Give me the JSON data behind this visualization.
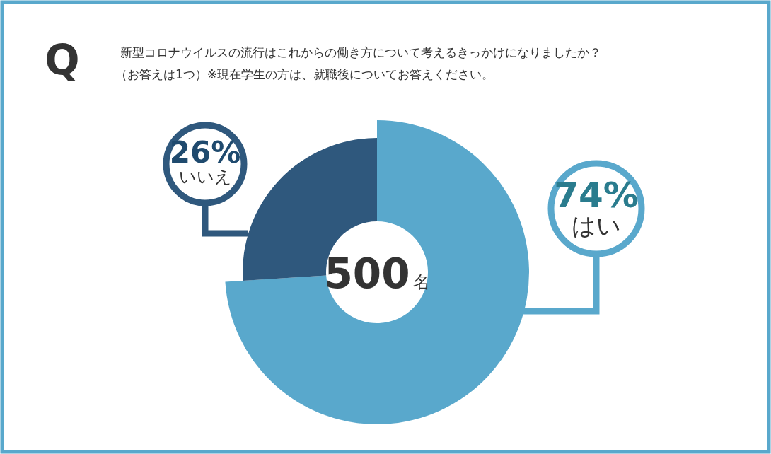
{
  "chart_data": {
    "type": "donut",
    "title": "新型コロナウイルスの流行はこれからの働き方について考えるきっかけになりましたか？",
    "subtitle": "（お答えは1つ）※現在学生の方は、就職後についてお答えください。",
    "categories": [
      "はい",
      "いいえ"
    ],
    "values": [
      74,
      26
    ],
    "colors": [
      "#59a8cc",
      "#2f587d"
    ],
    "value_labels": [
      "74%",
      "26%"
    ],
    "annotations": [
      "Q",
      "500名"
    ]
  }
}
